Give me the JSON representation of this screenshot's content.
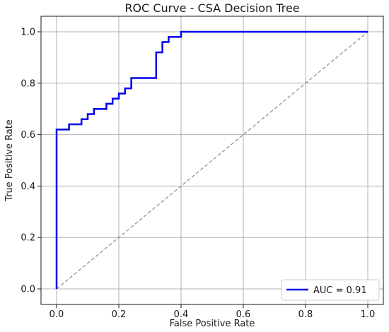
{
  "chart_data": {
    "type": "line",
    "title": "ROC Curve - CSA Decision Tree",
    "xlabel": "False Positive Rate",
    "ylabel": "True Positive Rate",
    "xlim": [
      0.0,
      1.0
    ],
    "ylim": [
      0.0,
      1.0
    ],
    "xticks": [
      "0.0",
      "0.2",
      "0.4",
      "0.6",
      "0.8",
      "1.0"
    ],
    "yticks": [
      "0.0",
      "0.2",
      "0.4",
      "0.6",
      "0.8",
      "1.0"
    ],
    "grid": true,
    "legend_position": "lower-right",
    "series": [
      {
        "name": "AUC = 0.91",
        "color": "#0000ee",
        "style": "solid",
        "x": [
          0.0,
          0.0,
          0.04,
          0.04,
          0.08,
          0.08,
          0.1,
          0.1,
          0.12,
          0.12,
          0.16,
          0.16,
          0.18,
          0.18,
          0.2,
          0.2,
          0.22,
          0.22,
          0.24,
          0.24,
          0.32,
          0.32,
          0.34,
          0.34,
          0.36,
          0.36,
          0.4,
          0.4,
          1.0
        ],
        "y": [
          0.0,
          0.62,
          0.62,
          0.64,
          0.64,
          0.66,
          0.66,
          0.68,
          0.68,
          0.7,
          0.7,
          0.72,
          0.72,
          0.74,
          0.74,
          0.76,
          0.76,
          0.78,
          0.78,
          0.82,
          0.82,
          0.92,
          0.92,
          0.96,
          0.96,
          0.98,
          0.98,
          1.0,
          1.0
        ]
      },
      {
        "name": "",
        "color": "#8a8a8a",
        "style": "dashed",
        "x": [
          0.0,
          1.0
        ],
        "y": [
          0.0,
          1.0
        ]
      }
    ]
  }
}
